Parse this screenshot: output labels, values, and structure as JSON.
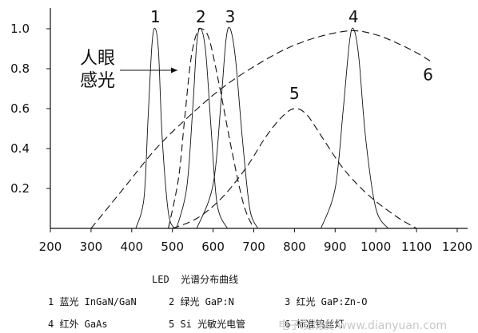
{
  "chart_data": {
    "type": "line",
    "title": "LED  光谱分布曲线",
    "xlabel": "",
    "ylabel": "",
    "xlim": [
      200,
      1200
    ],
    "ylim": [
      0,
      1.0
    ],
    "xticks": [
      200,
      300,
      400,
      500,
      600,
      700,
      800,
      900,
      1000,
      1100,
      1200
    ],
    "yticks": [
      0.2,
      0.4,
      0.6,
      0.8,
      1.0
    ],
    "xtick_labels": [
      "200",
      "300",
      "400",
      "500",
      "600",
      "700",
      "800",
      "900",
      "1000",
      "1100",
      "1200"
    ],
    "ytick_labels": [
      "0.2",
      "0.4",
      "0.6",
      "0.8",
      "1.0"
    ],
    "grid": false,
    "legend_position": "bottom",
    "eye_label_line1": "人眼",
    "eye_label_line2": "感光",
    "series": [
      {
        "name": "1 蓝光 InGaN/GaN",
        "label": "1",
        "style": "solid",
        "x": [
          410,
          430,
          440,
          450,
          458,
          466,
          475,
          490,
          505
        ],
        "y": [
          0,
          0.15,
          0.55,
          0.93,
          1.0,
          0.88,
          0.45,
          0.08,
          0
        ]
      },
      {
        "name": "2 绿光 GaP:N",
        "label": "2",
        "style": "solid",
        "x": [
          510,
          535,
          550,
          560,
          570,
          582,
          595,
          610,
          635
        ],
        "y": [
          0,
          0.2,
          0.6,
          0.93,
          1.0,
          0.88,
          0.5,
          0.12,
          0
        ]
      },
      {
        "name": "3 红光 GaP:Zn-O",
        "label": "3",
        "style": "solid",
        "x": [
          560,
          600,
          620,
          632,
          642,
          655,
          672,
          690,
          710
        ],
        "y": [
          0,
          0.22,
          0.65,
          0.95,
          1.0,
          0.85,
          0.45,
          0.1,
          0
        ]
      },
      {
        "name": "4 红外 GaAs",
        "label": "4",
        "style": "solid",
        "x": [
          865,
          900,
          920,
          935,
          945,
          958,
          975,
          1000,
          1030
        ],
        "y": [
          0,
          0.2,
          0.6,
          0.93,
          1.0,
          0.86,
          0.45,
          0.1,
          0
        ]
      },
      {
        "name": "5 Si 光敏光电管",
        "label": "5",
        "style": "dashed",
        "x": [
          500,
          560,
          620,
          680,
          730,
          770,
          800,
          830,
          870,
          920,
          980,
          1050,
          1100
        ],
        "y": [
          0,
          0.05,
          0.15,
          0.3,
          0.46,
          0.56,
          0.6,
          0.57,
          0.45,
          0.3,
          0.17,
          0.06,
          0
        ]
      },
      {
        "name": "6 标准钨丝灯",
        "label": "6",
        "style": "dashed",
        "x": [
          300,
          380,
          460,
          540,
          620,
          700,
          780,
          860,
          940,
          1000,
          1050,
          1100,
          1140
        ],
        "y": [
          0,
          0.2,
          0.4,
          0.56,
          0.7,
          0.81,
          0.9,
          0.96,
          0.99,
          0.97,
          0.93,
          0.88,
          0.83
        ]
      },
      {
        "name": "人眼感光",
        "style": "dashed",
        "x": [
          490,
          515,
          530,
          545,
          560,
          572,
          590,
          615,
          645,
          675,
          700
        ],
        "y": [
          0,
          0.25,
          0.55,
          0.84,
          0.98,
          1.0,
          0.95,
          0.72,
          0.4,
          0.12,
          0
        ]
      }
    ],
    "legend": [
      [
        "1 蓝光 InGaN/GaN",
        "2 绿光 GaP:N",
        "3 红光 GaP:Zn-O"
      ],
      [
        "4 红外 GaAs",
        "5 Si 光敏光电管",
        "6 标准钨丝灯"
      ]
    ],
    "watermark": "电子发烧友 www.dianyuan.com"
  }
}
